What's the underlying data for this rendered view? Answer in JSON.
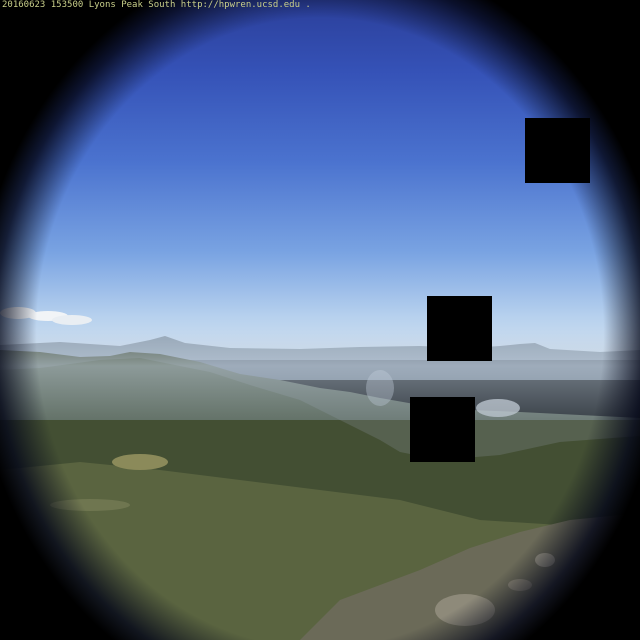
{
  "camera": {
    "overlay_text": "20160623 153500 Lyons Peak South  http://hpwren.ucsd.edu  ."
  },
  "scene": {
    "sky_color_top": "#2b3f9a",
    "sky_color_horizon": "#d6e3ef",
    "vegetation_color": "#3d4a32",
    "smoke_color": "#d9dde2",
    "occluder_color": "#000000"
  }
}
